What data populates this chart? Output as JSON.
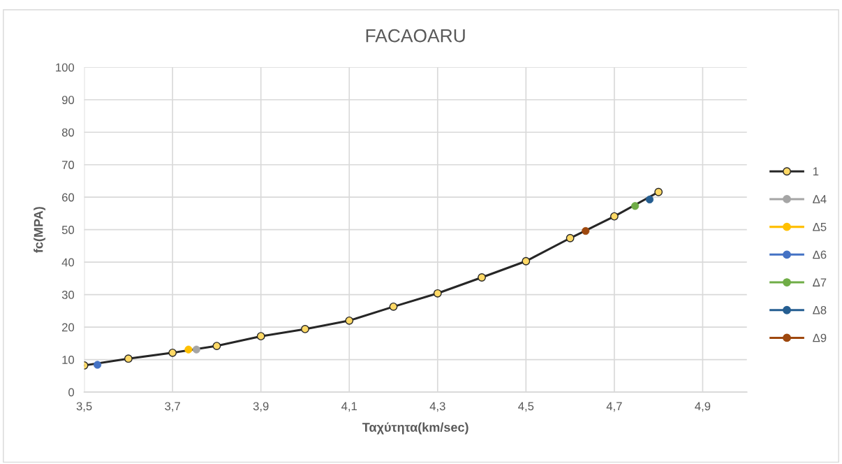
{
  "chart_data": {
    "type": "line",
    "title": "FACAOARU",
    "xlabel": "Ταχύτητα(km/sec)",
    "ylabel": "fc(MPA)",
    "xlim": [
      3.5,
      5.0
    ],
    "ylim": [
      0,
      100
    ],
    "xticks": [
      {
        "value": 3.5,
        "label": "3,5"
      },
      {
        "value": 3.7,
        "label": "3,7"
      },
      {
        "value": 3.9,
        "label": "3,9"
      },
      {
        "value": 4.1,
        "label": "4,1"
      },
      {
        "value": 4.3,
        "label": "4,3"
      },
      {
        "value": 4.5,
        "label": "4,5"
      },
      {
        "value": 4.7,
        "label": "4,7"
      },
      {
        "value": 4.9,
        "label": "4,9"
      }
    ],
    "yticks": [
      0,
      10,
      20,
      30,
      40,
      50,
      60,
      70,
      80,
      90,
      100
    ],
    "grid": true,
    "legend": "right",
    "marker": "circle",
    "line_style": "solid",
    "series": [
      {
        "name": "1",
        "color": "#262626",
        "x": [
          3.5,
          3.6,
          3.7,
          3.8,
          3.9,
          4.0,
          4.1,
          4.2,
          4.3,
          4.4,
          4.5,
          4.6,
          4.7,
          4.8
        ],
        "values": [
          8.2,
          10.3,
          12.1,
          14.2,
          17.2,
          19.4,
          22.0,
          26.3,
          30.4,
          35.3,
          40.3,
          47.4,
          54.1,
          61.6
        ]
      },
      {
        "name": "Δ4",
        "color": "#a5a5a5",
        "x": [
          3.754
        ],
        "values": [
          13.1
        ]
      },
      {
        "name": "Δ5",
        "color": "#ffc000",
        "x": [
          3.736
        ],
        "values": [
          13.1
        ]
      },
      {
        "name": "Δ6",
        "color": "#4472c4",
        "x": [
          3.53
        ],
        "values": [
          8.4
        ]
      },
      {
        "name": "Δ7",
        "color": "#70ad47",
        "x": [
          4.747
        ],
        "values": [
          57.3
        ]
      },
      {
        "name": "Δ8",
        "color": "#255e91",
        "x": [
          4.78
        ],
        "values": [
          59.3
        ]
      },
      {
        "name": "Δ9",
        "color": "#9e480e",
        "x": [
          4.635
        ],
        "values": [
          49.6
        ]
      }
    ]
  }
}
